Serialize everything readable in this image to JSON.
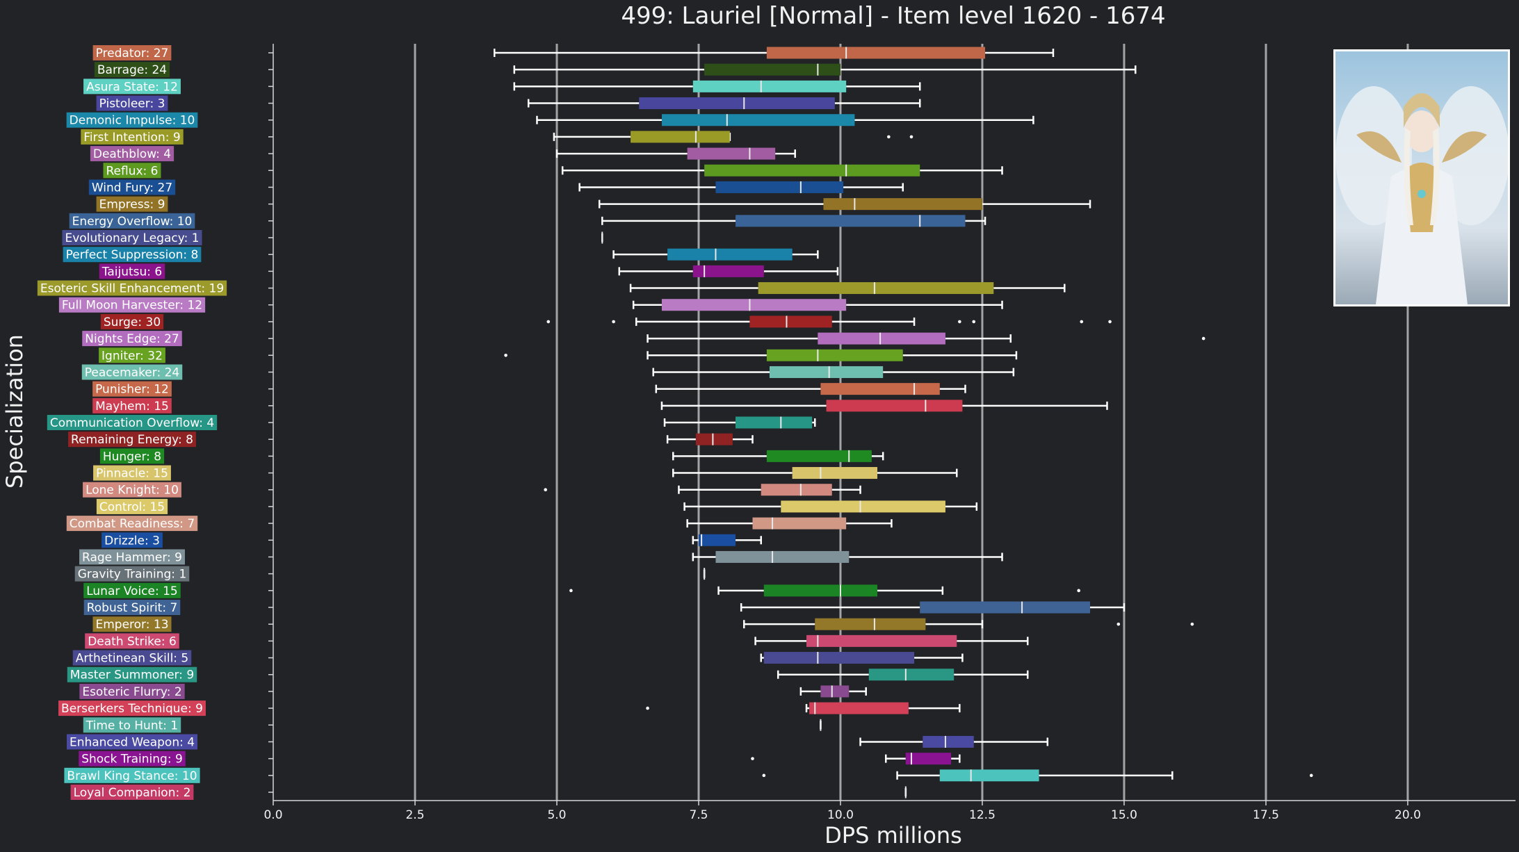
{
  "chart_data": {
    "type": "boxplot",
    "title": "499: Lauriel [Normal] - Item level 1620 - 1674",
    "xlabel": "DPS millions",
    "ylabel": "Specialization",
    "xlim": [
      0,
      21.9
    ],
    "xticks": [
      "0.0",
      "2.5",
      "5.0",
      "7.5",
      "10.0",
      "12.5",
      "15.0",
      "17.5",
      "20.0"
    ],
    "grid": "vertical",
    "categories": [
      {
        "label": "Predator: 27",
        "color": "#c0674a",
        "stats": [
          3.9,
          8.7,
          10.1,
          12.55,
          13.75
        ],
        "outliers": []
      },
      {
        "label": "Barrage: 24",
        "color": "#2e5018",
        "stats": [
          4.25,
          7.6,
          9.6,
          10.0,
          15.2
        ],
        "outliers": []
      },
      {
        "label": "Asura State: 12",
        "color": "#5fd1c3",
        "stats": [
          4.25,
          7.4,
          8.6,
          10.1,
          11.4
        ],
        "outliers": []
      },
      {
        "label": "Pistoleer: 3",
        "color": "#48479d",
        "stats": [
          4.5,
          6.45,
          8.3,
          9.9,
          11.4
        ],
        "outliers": []
      },
      {
        "label": "Demonic Impulse: 10",
        "color": "#1b88aa",
        "stats": [
          4.65,
          6.85,
          8.0,
          10.25,
          13.4
        ],
        "outliers": []
      },
      {
        "label": "First Intention: 9",
        "color": "#9a9b27",
        "stats": [
          4.95,
          6.3,
          7.45,
          8.05,
          8.05
        ],
        "outliers": [
          10.85,
          11.25
        ]
      },
      {
        "label": "Deathblow: 4",
        "color": "#a15ca2",
        "stats": [
          5.0,
          7.3,
          8.4,
          8.85,
          9.2
        ],
        "outliers": []
      },
      {
        "label": "Reflux: 6",
        "color": "#5c9a20",
        "stats": [
          5.1,
          7.6,
          10.1,
          11.4,
          12.85
        ],
        "outliers": []
      },
      {
        "label": "Wind Fury: 27",
        "color": "#1b4f93",
        "stats": [
          5.4,
          7.8,
          9.3,
          10.05,
          11.1
        ],
        "outliers": []
      },
      {
        "label": "Empress: 9",
        "color": "#937427",
        "stats": [
          5.75,
          9.7,
          10.25,
          12.5,
          14.4
        ],
        "outliers": []
      },
      {
        "label": "Energy Overflow: 10",
        "color": "#3a6497",
        "stats": [
          5.8,
          8.15,
          11.4,
          12.2,
          12.55
        ],
        "outliers": []
      },
      {
        "label": "Evolutionary Legacy: 1",
        "color": "#464c8e",
        "stats": [
          5.8,
          5.8,
          5.8,
          5.8,
          5.8
        ],
        "outliers": []
      },
      {
        "label": "Perfect Suppression: 8",
        "color": "#1a82a8",
        "stats": [
          6.0,
          6.95,
          7.8,
          9.15,
          9.6
        ],
        "outliers": []
      },
      {
        "label": "Taijutsu: 6",
        "color": "#8b148c",
        "stats": [
          6.1,
          7.4,
          7.6,
          8.65,
          9.95
        ],
        "outliers": []
      },
      {
        "label": "Esoteric Skill Enhancement: 19",
        "color": "#9b9a2a",
        "stats": [
          6.3,
          8.55,
          10.6,
          12.7,
          13.95
        ],
        "outliers": []
      },
      {
        "label": "Full Moon Harvester: 12",
        "color": "#b97cc4",
        "stats": [
          6.35,
          6.85,
          8.4,
          10.1,
          12.85
        ],
        "outliers": []
      },
      {
        "label": "Surge: 30",
        "color": "#9f2323",
        "stats": [
          6.4,
          8.4,
          9.05,
          9.85,
          11.3
        ],
        "outliers": [
          4.85,
          6.0,
          12.1,
          12.35,
          14.25,
          14.75
        ]
      },
      {
        "label": "Nights Edge: 27",
        "color": "#b36dbf",
        "stats": [
          6.6,
          9.6,
          10.7,
          11.85,
          13.0
        ],
        "outliers": [
          16.4
        ]
      },
      {
        "label": "Igniter: 32",
        "color": "#67a221",
        "stats": [
          6.6,
          8.7,
          9.6,
          11.1,
          13.1
        ],
        "outliers": [
          4.1
        ]
      },
      {
        "label": "Peacemaker: 24",
        "color": "#6fbfb0",
        "stats": [
          6.7,
          8.75,
          9.8,
          10.75,
          13.05
        ],
        "outliers": []
      },
      {
        "label": "Punisher: 12",
        "color": "#c6694a",
        "stats": [
          6.75,
          9.65,
          11.3,
          11.75,
          12.2
        ],
        "outliers": []
      },
      {
        "label": "Mayhem: 15",
        "color": "#cc3b4f",
        "stats": [
          6.85,
          9.75,
          11.5,
          12.15,
          14.7
        ],
        "outliers": []
      },
      {
        "label": "Communication Overflow: 4",
        "color": "#269787",
        "stats": [
          6.9,
          8.15,
          8.95,
          9.5,
          9.55
        ],
        "outliers": []
      },
      {
        "label": "Remaining Energy: 8",
        "color": "#8f2222",
        "stats": [
          6.95,
          7.45,
          7.75,
          8.1,
          8.45
        ],
        "outliers": []
      },
      {
        "label": "Hunger: 8",
        "color": "#1f8a22",
        "stats": [
          7.05,
          8.7,
          10.15,
          10.55,
          10.75
        ],
        "outliers": []
      },
      {
        "label": "Pinnacle: 15",
        "color": "#d8c46a",
        "stats": [
          7.05,
          9.15,
          9.65,
          10.65,
          12.05
        ],
        "outliers": []
      },
      {
        "label": "Lone Knight: 10",
        "color": "#d28a80",
        "stats": [
          7.15,
          8.6,
          9.3,
          9.85,
          10.35
        ],
        "outliers": [
          4.8
        ]
      },
      {
        "label": "Control: 15",
        "color": "#dcc96a",
        "stats": [
          7.25,
          8.95,
          10.35,
          11.85,
          12.4
        ],
        "outliers": []
      },
      {
        "label": "Combat Readiness: 7",
        "color": "#d19886",
        "stats": [
          7.3,
          8.45,
          8.8,
          10.1,
          10.9
        ],
        "outliers": []
      },
      {
        "label": "Drizzle: 3",
        "color": "#1a4ea0",
        "stats": [
          7.4,
          7.5,
          7.55,
          8.15,
          8.6
        ],
        "outliers": []
      },
      {
        "label": "Rage Hammer: 9",
        "color": "#7f929a",
        "stats": [
          7.4,
          7.8,
          8.8,
          10.15,
          12.85
        ],
        "outliers": []
      },
      {
        "label": "Gravity Training: 1",
        "color": "#677278",
        "stats": [
          7.6,
          7.6,
          7.6,
          7.6,
          7.6
        ],
        "outliers": []
      },
      {
        "label": "Lunar Voice: 15",
        "color": "#1b8424",
        "stats": [
          7.85,
          8.65,
          10.0,
          10.65,
          11.8
        ],
        "outliers": [
          5.25,
          14.2
        ]
      },
      {
        "label": "Robust Spirit: 7",
        "color": "#3e6394",
        "stats": [
          8.25,
          11.4,
          13.2,
          14.4,
          15.0
        ],
        "outliers": []
      },
      {
        "label": "Emperor: 13",
        "color": "#94782a",
        "stats": [
          8.3,
          9.55,
          10.6,
          11.5,
          12.5
        ],
        "outliers": [
          14.9,
          16.2
        ]
      },
      {
        "label": "Death Strike: 6",
        "color": "#cc4a72",
        "stats": [
          8.5,
          9.4,
          9.6,
          12.05,
          13.3
        ],
        "outliers": []
      },
      {
        "label": "Arthetinean Skill: 5",
        "color": "#4a4a93",
        "stats": [
          8.6,
          8.65,
          9.6,
          11.3,
          12.15
        ],
        "outliers": []
      },
      {
        "label": "Master Summoner: 9",
        "color": "#2a9785",
        "stats": [
          8.9,
          10.5,
          11.15,
          12.0,
          13.3
        ],
        "outliers": []
      },
      {
        "label": "Esoteric Flurry: 2",
        "color": "#8a4a90",
        "stats": [
          9.3,
          9.65,
          9.85,
          10.15,
          10.45
        ],
        "outliers": []
      },
      {
        "label": "Berserkers Technique: 9",
        "color": "#d34158",
        "stats": [
          9.4,
          9.45,
          9.55,
          11.2,
          12.1
        ],
        "outliers": [
          6.6
        ]
      },
      {
        "label": "Time to Hunt: 1",
        "color": "#56b0a3",
        "stats": [
          9.65,
          9.65,
          9.65,
          9.65,
          9.65
        ],
        "outliers": []
      },
      {
        "label": "Enhanced Weapon: 4",
        "color": "#4a4aa2",
        "stats": [
          10.35,
          11.45,
          11.85,
          12.35,
          13.65
        ],
        "outliers": []
      },
      {
        "label": "Shock Training: 9",
        "color": "#8a1391",
        "stats": [
          10.8,
          11.15,
          11.25,
          11.95,
          12.1
        ],
        "outliers": [
          8.45
        ]
      },
      {
        "label": "Brawl King Stance: 10",
        "color": "#4cc3bd",
        "stats": [
          11.0,
          11.75,
          12.3,
          13.5,
          15.85
        ],
        "outliers": [
          8.65,
          18.3
        ]
      },
      {
        "label": "Loyal Companion: 2",
        "color": "#c43a64",
        "stats": [
          11.15,
          11.15,
          11.15,
          11.15,
          11.15
        ],
        "outliers": []
      }
    ]
  },
  "portrait": {
    "subject": "Lauriel character portrait"
  }
}
